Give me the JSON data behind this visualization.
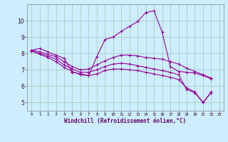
{
  "xlabel": "Windchill (Refroidissement éolien,°C)",
  "bg_color": "#cceeff",
  "line_color": "#990099",
  "grid_color": "#aaccbb",
  "xlim": [
    -0.5,
    23.5
  ],
  "ylim": [
    4.5,
    11.0
  ],
  "xticks": [
    0,
    1,
    2,
    3,
    4,
    5,
    6,
    7,
    8,
    9,
    10,
    11,
    12,
    13,
    14,
    15,
    16,
    17,
    18,
    19,
    20,
    21,
    22,
    23
  ],
  "yticks": [
    5,
    6,
    7,
    8,
    9,
    10
  ],
  "series": [
    [
      8.2,
      8.3,
      8.1,
      7.9,
      7.7,
      6.85,
      6.75,
      6.65,
      7.8,
      8.85,
      9.0,
      9.35,
      9.65,
      9.95,
      10.5,
      10.6,
      9.3,
      7.2,
      6.9,
      6.85,
      6.8,
      6.65,
      6.45
    ],
    [
      8.2,
      8.1,
      7.95,
      7.8,
      7.5,
      7.2,
      7.0,
      7.05,
      7.3,
      7.55,
      7.75,
      7.9,
      7.9,
      7.85,
      7.75,
      7.7,
      7.65,
      7.5,
      7.35,
      7.1,
      6.9,
      6.7,
      6.5
    ],
    [
      8.15,
      8.0,
      7.85,
      7.65,
      7.3,
      7.05,
      6.85,
      6.85,
      7.0,
      7.2,
      7.35,
      7.4,
      7.35,
      7.25,
      7.15,
      7.05,
      6.95,
      6.85,
      6.7,
      5.8,
      5.6,
      5.0,
      5.6
    ],
    [
      8.15,
      7.95,
      7.75,
      7.5,
      7.15,
      6.9,
      6.7,
      6.65,
      6.75,
      6.95,
      7.05,
      7.05,
      7.0,
      6.95,
      6.85,
      6.75,
      6.65,
      6.55,
      6.4,
      5.9,
      5.65,
      5.0,
      5.65
    ]
  ],
  "marker": "+",
  "marker_size": 2.5,
  "linewidth": 0.8
}
